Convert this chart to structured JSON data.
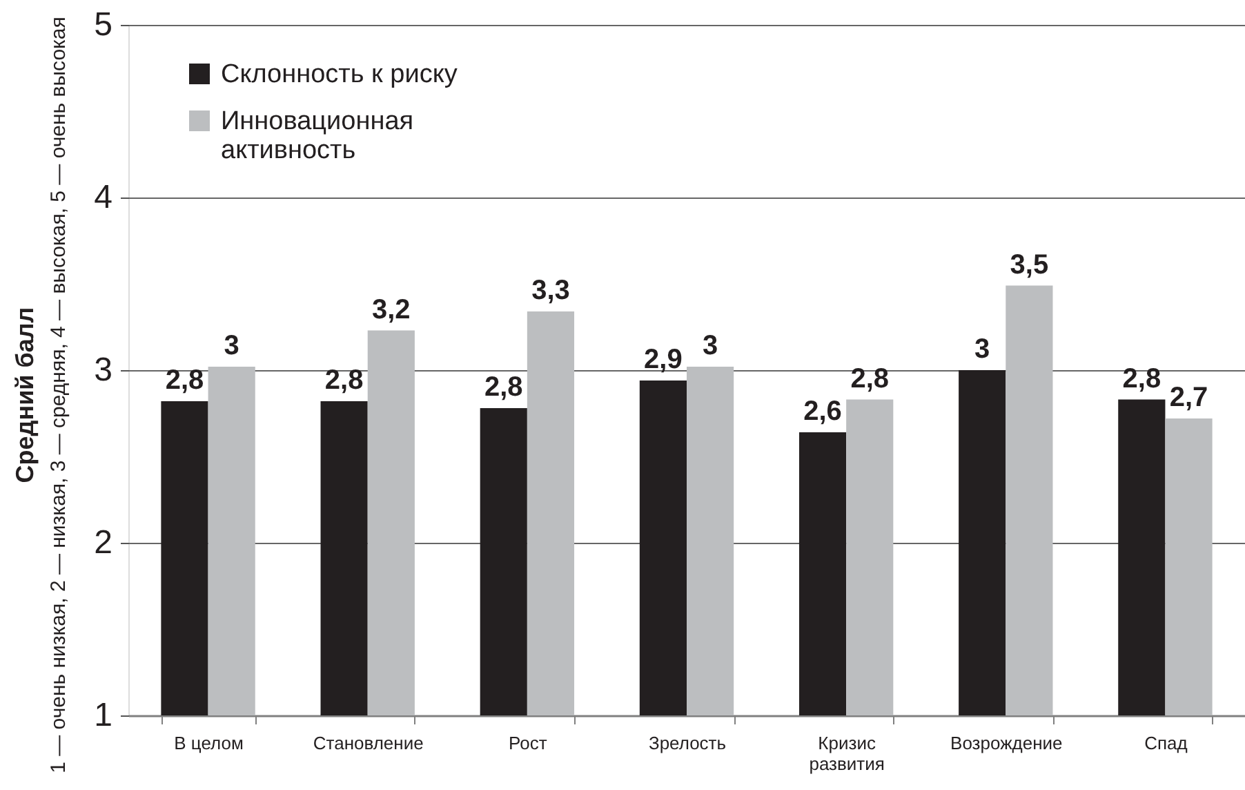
{
  "chart_data": {
    "type": "bar",
    "ylabel": "Средний балл\n1 — очень низкая, 2 — низкая, 3 — средняя, 4 — высокая, 5 — очень высокая",
    "categories": [
      "В целом",
      "Становление",
      "Рост",
      "Зрелость",
      "Кризис развития",
      "Возрождение",
      "Спад"
    ],
    "series": [
      {
        "name": "Склонность к риску",
        "color": "#231f20",
        "values": [
          2.82,
          2.82,
          2.78,
          2.94,
          2.64,
          3.0,
          2.83
        ],
        "value_labels": [
          "2,8",
          "2,8",
          "2,8",
          "2,9",
          "2,6",
          "3",
          "2,8"
        ]
      },
      {
        "name": "Инновационная активность",
        "color": "#bcbec0",
        "values": [
          3.02,
          3.23,
          3.34,
          3.02,
          2.83,
          3.49,
          2.72
        ],
        "value_labels": [
          "3",
          "3,2",
          "3,3",
          "3",
          "2,8",
          "3,5",
          "2,7"
        ]
      }
    ],
    "ylim": [
      1,
      5
    ],
    "yticks": [
      1,
      2,
      3,
      4,
      5
    ],
    "grid": "y",
    "legend": "top left"
  }
}
